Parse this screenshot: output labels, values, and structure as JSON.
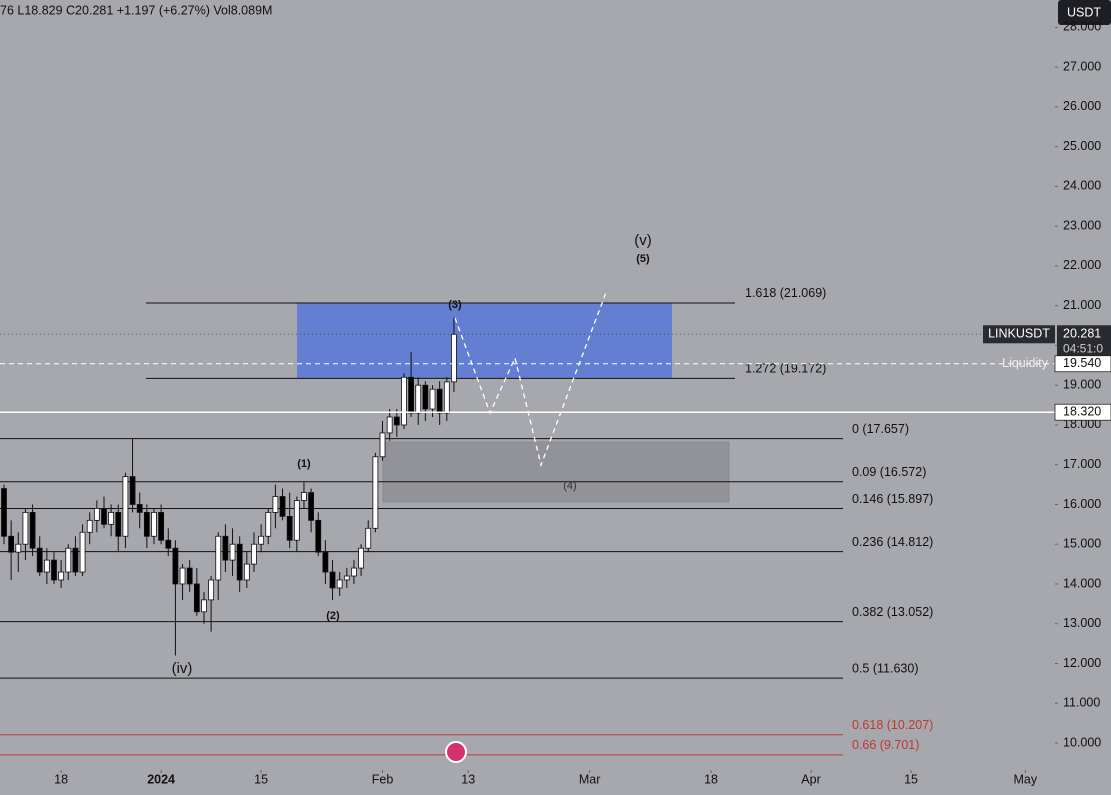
{
  "chart_data": {
    "type": "candlestick",
    "header": "76  L18.829  C20.281  +1.197 (+6.27%)  Vol8.089M",
    "currency": "USDT",
    "symbol": "LINKUSDT",
    "countdown": "04:51:0",
    "up_color": "#ffffff",
    "down_color": "#000000",
    "xlim": [
      -0.56,
      155.0
    ],
    "ylim": [
      9.32,
      28.69
    ],
    "xticks": [
      {
        "value": 8,
        "label": "18"
      },
      {
        "value": 22,
        "label": "2024"
      },
      {
        "value": 36,
        "label": "15"
      },
      {
        "value": 53,
        "label": "Feb"
      },
      {
        "value": 65,
        "label": "13"
      },
      {
        "value": 82,
        "label": "Mar"
      },
      {
        "value": 99,
        "label": "18"
      },
      {
        "value": 113,
        "label": "Apr"
      },
      {
        "value": 127,
        "label": "15"
      },
      {
        "value": 143,
        "label": "May"
      }
    ],
    "yticks": [
      {
        "value": 10,
        "label": "10.000"
      },
      {
        "value": 11,
        "label": "11.000"
      },
      {
        "value": 12,
        "label": "12.000"
      },
      {
        "value": 13,
        "label": "13.000"
      },
      {
        "value": 14,
        "label": "14.000"
      },
      {
        "value": 15,
        "label": "15.000"
      },
      {
        "value": 16,
        "label": "16.000"
      },
      {
        "value": 17,
        "label": "17.000"
      },
      {
        "value": 18,
        "label": "18.000"
      },
      {
        "value": 19,
        "label": "19.000"
      },
      {
        "value": 20,
        "label": "20.000"
      },
      {
        "value": 21,
        "label": "21.000"
      },
      {
        "value": 22,
        "label": "22.000"
      },
      {
        "value": 23,
        "label": "23.000"
      },
      {
        "value": 24,
        "label": "24.000"
      },
      {
        "value": 25,
        "label": "25.000"
      },
      {
        "value": 26,
        "label": "26.000"
      },
      {
        "value": 27,
        "label": "27.000"
      },
      {
        "value": 28,
        "label": "28.000"
      }
    ],
    "open": [
      16.4,
      15.2,
      14.8,
      15.0,
      15.8,
      14.9,
      14.3,
      14.6,
      14.1,
      14.3,
      14.9,
      14.3,
      15.3,
      15.6,
      15.9,
      15.5,
      15.8,
      15.2,
      16.7,
      16.0,
      15.8,
      15.2,
      15.8,
      15.1,
      14.9,
      14.0,
      14.4,
      14.0,
      13.3,
      13.6,
      14.1,
      15.2,
      14.6,
      15.0,
      14.1,
      14.5,
      15.0,
      15.2,
      15.8,
      16.2,
      15.7,
      15.1,
      16.1,
      16.3,
      15.6,
      14.8,
      14.3,
      13.9,
      14.1,
      14.2,
      14.4,
      14.9,
      15.4,
      17.2,
      17.8,
      18.2,
      18.0,
      19.2,
      18.3,
      19.0,
      18.4,
      18.9,
      18.3,
      19.084
    ],
    "high": [
      16.5,
      15.6,
      15.3,
      15.9,
      16.0,
      15.2,
      14.9,
      14.8,
      14.6,
      15.0,
      15.2,
      15.5,
      15.8,
      16.1,
      16.2,
      16.0,
      16.0,
      16.8,
      17.67,
      16.3,
      16.0,
      15.9,
      16.0,
      15.4,
      15.1,
      14.5,
      14.6,
      14.4,
      13.8,
      14.2,
      15.3,
      15.5,
      15.4,
      15.2,
      14.8,
      15.3,
      15.5,
      15.9,
      16.5,
      16.4,
      16.3,
      16.2,
      16.56,
      16.4,
      15.8,
      15.1,
      14.6,
      14.3,
      14.4,
      14.6,
      15.0,
      15.6,
      17.3,
      18.1,
      18.4,
      18.4,
      19.3,
      19.83,
      19.2,
      19.1,
      19.0,
      19.1,
      19.2,
      20.7
    ],
    "low": [
      15.0,
      14.1,
      14.3,
      14.6,
      14.7,
      14.2,
      14.0,
      14.0,
      13.9,
      14.1,
      14.2,
      14.2,
      15.0,
      15.3,
      15.4,
      15.2,
      14.8,
      14.9,
      15.8,
      15.4,
      14.9,
      15.0,
      15.0,
      14.7,
      12.2,
      13.6,
      13.8,
      13.2,
      13.0,
      12.8,
      13.6,
      14.3,
      14.2,
      13.8,
      13.9,
      14.3,
      14.8,
      15.0,
      15.4,
      15.6,
      14.9,
      14.8,
      15.9,
      15.3,
      14.7,
      14.0,
      13.6,
      13.7,
      13.9,
      14.0,
      14.2,
      14.8,
      15.3,
      17.1,
      17.6,
      17.7,
      17.9,
      18.2,
      18.0,
      18.1,
      18.2,
      18.0,
      18.1,
      18.829
    ],
    "close": [
      15.2,
      14.8,
      15.0,
      15.8,
      14.9,
      14.3,
      14.6,
      14.1,
      14.3,
      14.9,
      14.3,
      15.3,
      15.6,
      15.9,
      15.5,
      15.8,
      15.2,
      16.7,
      16.0,
      15.8,
      15.2,
      15.8,
      15.1,
      14.9,
      14.0,
      14.4,
      14.0,
      13.3,
      13.6,
      14.1,
      15.2,
      14.6,
      15.0,
      14.1,
      14.5,
      15.0,
      15.2,
      15.8,
      16.2,
      15.7,
      15.1,
      16.1,
      16.3,
      15.6,
      14.8,
      14.3,
      13.9,
      14.1,
      14.2,
      14.4,
      14.9,
      15.4,
      17.2,
      17.8,
      18.2,
      18.0,
      19.2,
      18.3,
      19.0,
      18.4,
      18.9,
      18.3,
      19.084,
      20.281
    ],
    "fib_upper": [
      {
        "label": "1.618 (21.069)",
        "value": 21.069,
        "color": "#111111"
      },
      {
        "label": "1.272 (19.172)",
        "value": 19.172,
        "color": "#111111"
      }
    ],
    "fib_lower": [
      {
        "label": "0 (17.657)",
        "value": 17.657,
        "color": "#111111"
      },
      {
        "label": "0.09 (16.572)",
        "value": 16.572,
        "color": "#111111"
      },
      {
        "label": "0.146 (15.897)",
        "value": 15.897,
        "color": "#111111"
      },
      {
        "label": "0.236 (14.812)",
        "value": 14.812,
        "color": "#111111"
      },
      {
        "label": "0.382 (13.052)",
        "value": 13.052,
        "color": "#111111"
      },
      {
        "label": "0.5 (11.630)",
        "value": 11.63,
        "color": "#111111"
      },
      {
        "label": "0.618 (10.207)",
        "value": 10.207,
        "color": "#c0392b"
      },
      {
        "label": "0.66 (9.701)",
        "value": 9.701,
        "color": "#c0392b"
      }
    ],
    "price_lines": [
      {
        "value": 20.281,
        "label": "20.281"
      },
      {
        "value": 19.54,
        "label": "19.540",
        "note": "Liquidity"
      },
      {
        "value": 18.32,
        "label": "18.320"
      }
    ],
    "wave_labels": [
      "(v)",
      "(5)",
      "(3)",
      "(4)",
      "(1)",
      "(2)",
      "(iv)"
    ]
  }
}
